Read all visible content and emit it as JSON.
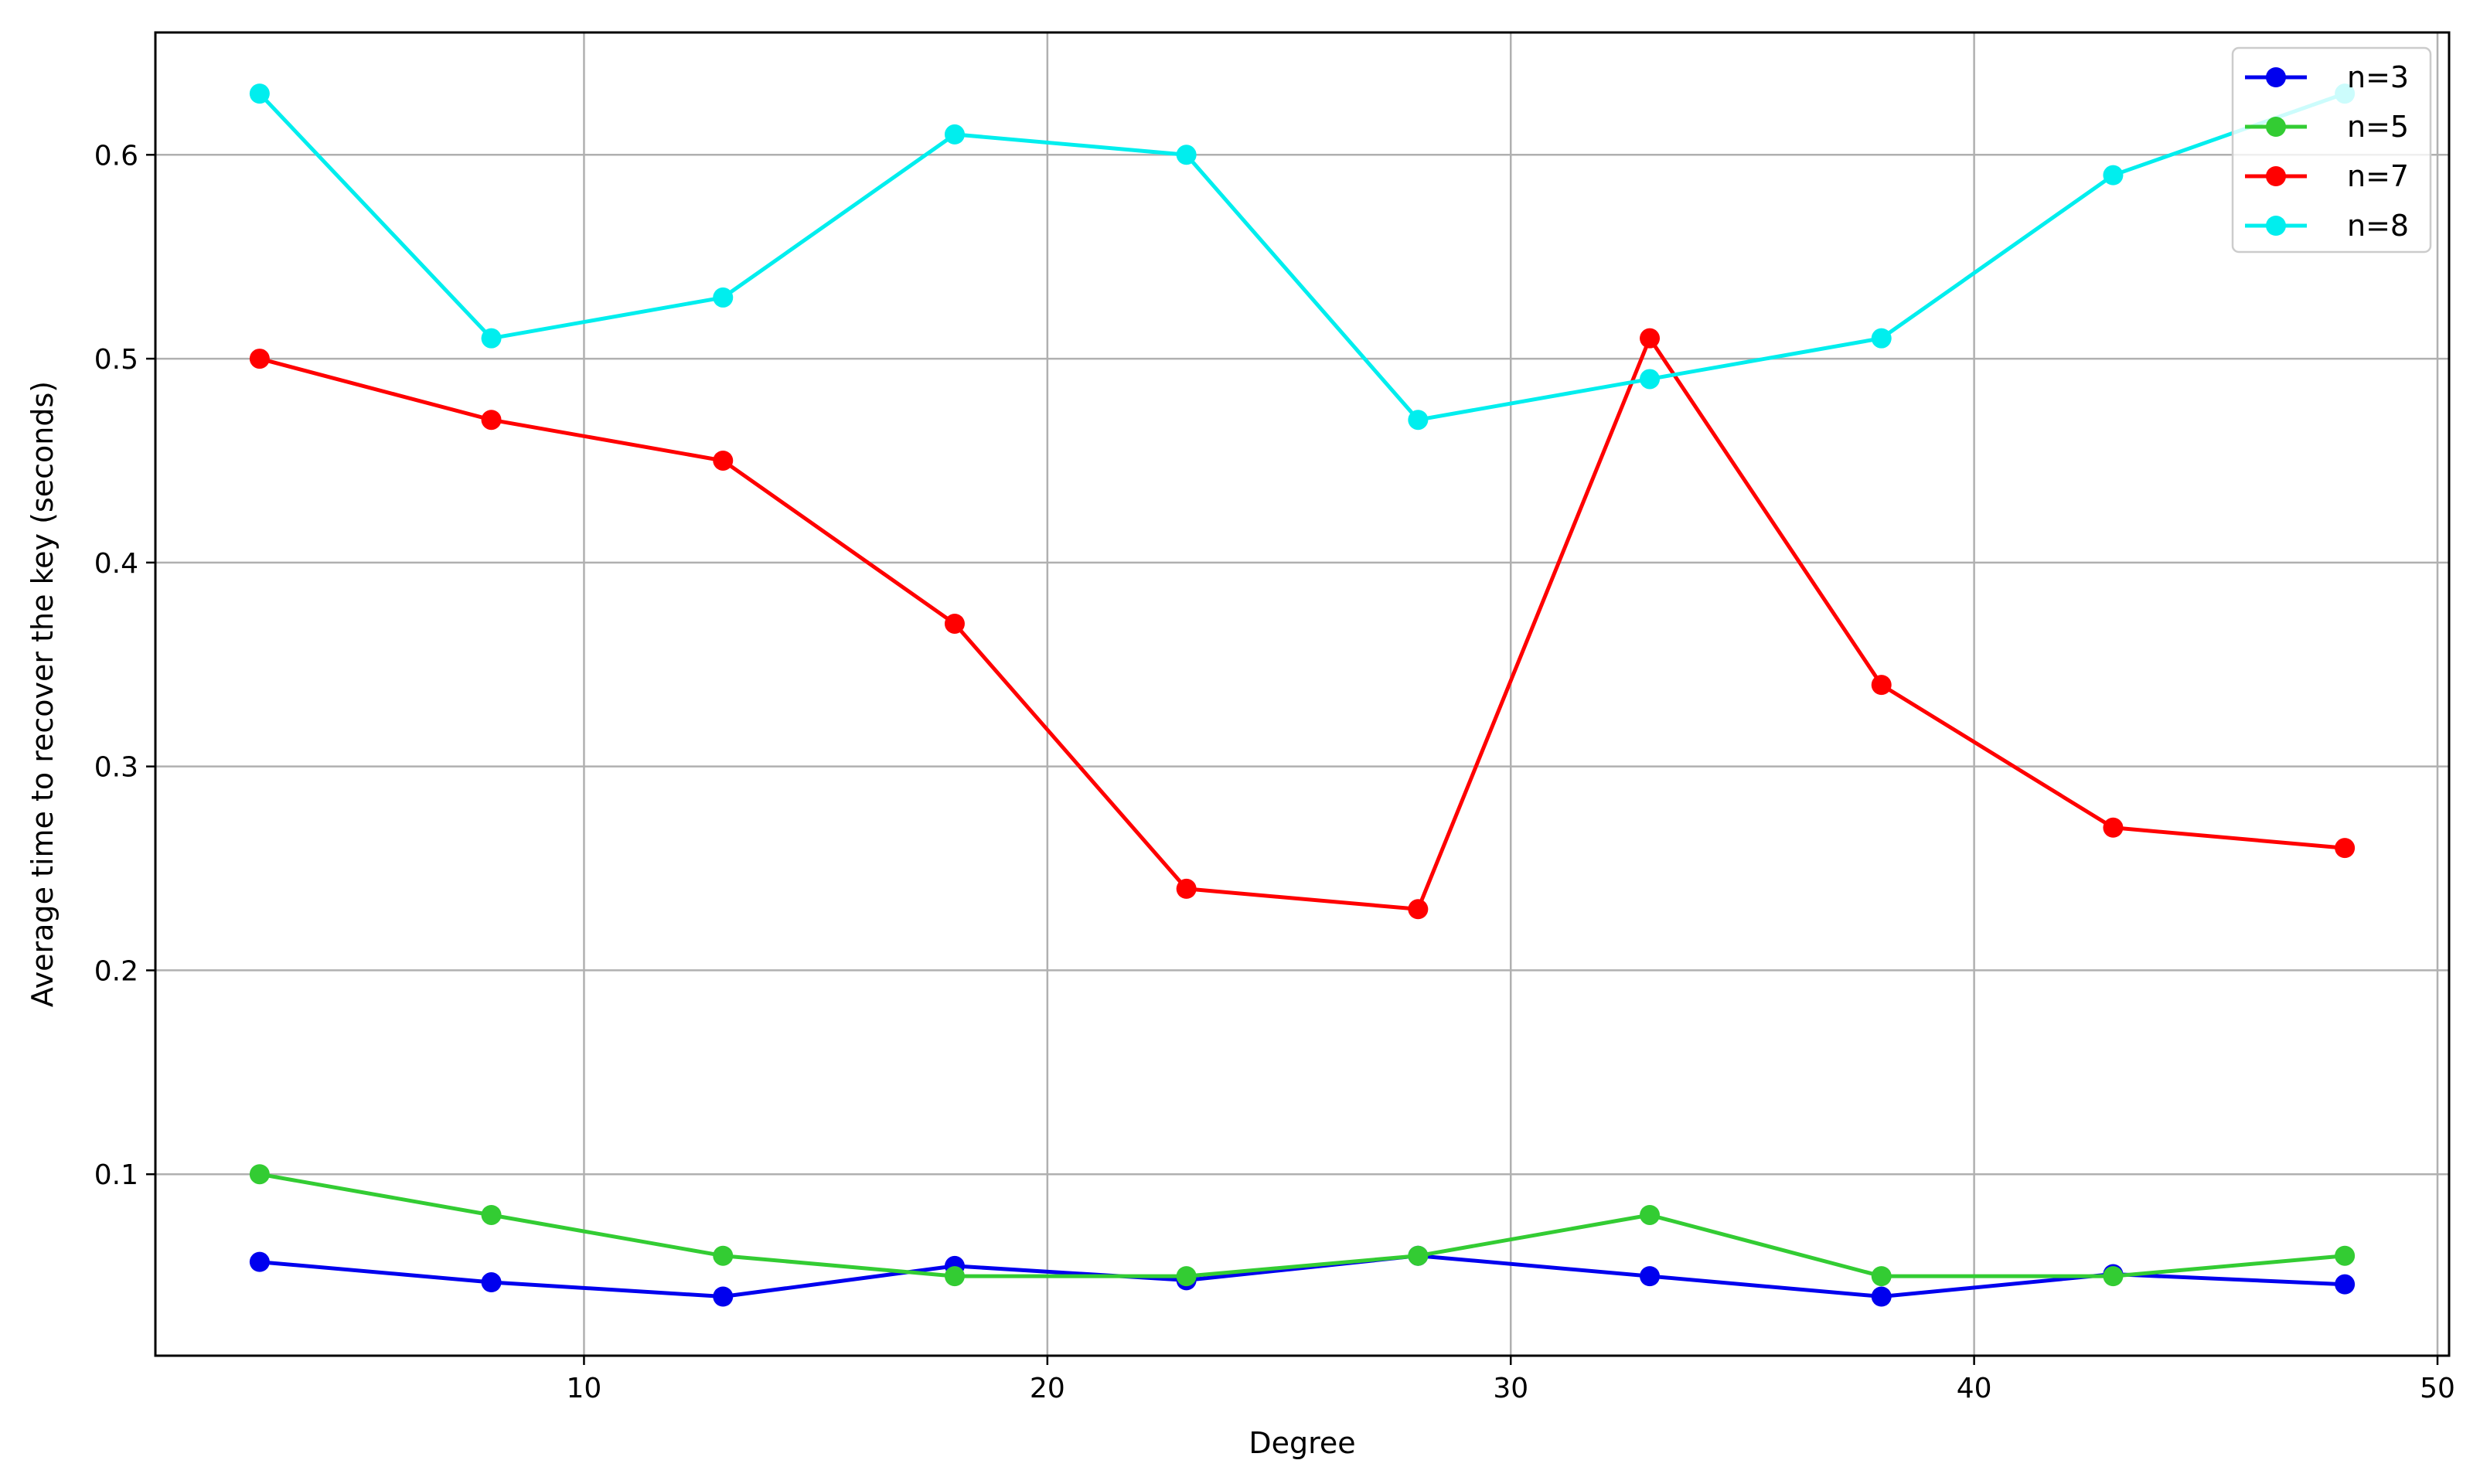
{
  "chart_data": {
    "type": "line",
    "xlabel": "Degree",
    "ylabel": "Average time to recover the key (seconds)",
    "xlim": [
      0.75,
      50.25
    ],
    "ylim": [
      0.011,
      0.66
    ],
    "xticks": [
      10,
      20,
      30,
      40,
      50
    ],
    "yticks": [
      0.1,
      0.2,
      0.3,
      0.4,
      0.5,
      0.6
    ],
    "xtick_labels": [
      "10",
      "20",
      "30",
      "40",
      "50"
    ],
    "ytick_labels": [
      "0.1",
      "0.2",
      "0.3",
      "0.4",
      "0.5",
      "0.6"
    ],
    "grid": true,
    "legend_position": "top-right",
    "x": [
      3,
      8,
      13,
      18,
      23,
      28,
      33,
      38,
      43,
      48
    ],
    "series": [
      {
        "name": "n=3",
        "color": "#0000ee",
        "values": [
          0.057,
          0.047,
          0.04,
          0.055,
          0.048,
          0.06,
          0.05,
          0.04,
          0.051,
          0.046
        ]
      },
      {
        "name": "n=5",
        "color": "#33cc33",
        "values": [
          0.1,
          0.08,
          0.06,
          0.05,
          0.05,
          0.06,
          0.08,
          0.05,
          0.05,
          0.06
        ]
      },
      {
        "name": "n=7",
        "color": "#ff0000",
        "values": [
          0.5,
          0.47,
          0.45,
          0.37,
          0.24,
          0.23,
          0.51,
          0.34,
          0.27,
          0.26
        ]
      },
      {
        "name": "n=8",
        "color": "#00eeee",
        "values": [
          0.63,
          0.51,
          0.53,
          0.61,
          0.6,
          0.47,
          0.49,
          0.51,
          0.59,
          0.63
        ]
      }
    ]
  }
}
